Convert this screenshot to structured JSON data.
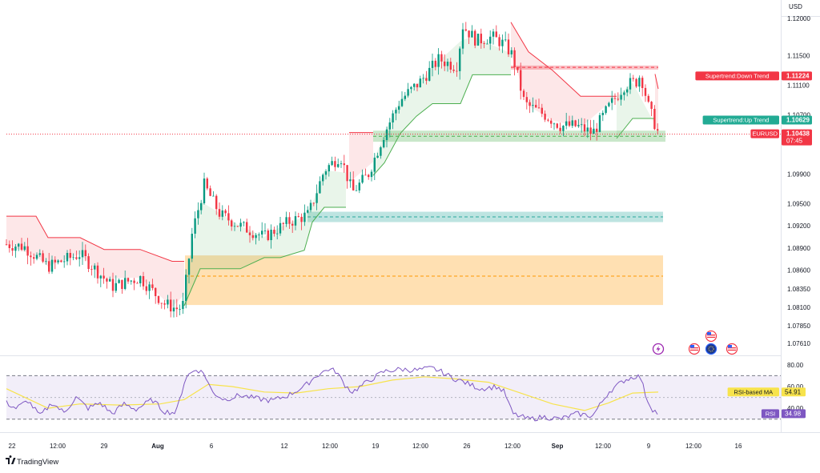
{
  "app": {
    "brand": "TradingView",
    "currency": "USD"
  },
  "chart_data": [
    {
      "type": "candlestick",
      "symbol": "EURUSD",
      "y_axis": {
        "ylim": [
          1.0745,
          1.1225
        ],
        "ticks": [
          "1.12000",
          "1.11500",
          "1.11100",
          "1.10700",
          "1.09900",
          "1.09500",
          "1.09200",
          "1.08900",
          "1.08600",
          "1.08350",
          "1.08100",
          "1.07850",
          "1.07610"
        ],
        "tick_values": [
          1.12,
          1.115,
          1.111,
          1.107,
          1.099,
          1.095,
          1.092,
          1.089,
          1.086,
          1.0835,
          1.081,
          1.0785,
          1.0761
        ]
      },
      "x_axis": {
        "ticks": [
          "22",
          "12:00",
          "29",
          "Aug",
          "6",
          "12",
          "12:00",
          "19",
          "12:00",
          "26",
          "12:00",
          "Sep",
          "12:00",
          "9",
          "12:00",
          "16"
        ],
        "bold_ticks": [
          "Aug",
          "Sep"
        ]
      },
      "waypoints": [
        [
          8,
          1.0895
        ],
        [
          30,
          1.0892
        ],
        [
          60,
          1.0865
        ],
        [
          100,
          1.0882
        ],
        [
          140,
          1.0838
        ],
        [
          175,
          1.085
        ],
        [
          205,
          1.0815
        ],
        [
          220,
          1.0808
        ],
        [
          228,
          1.081
        ],
        [
          240,
          1.091
        ],
        [
          255,
          1.0975
        ],
        [
          275,
          1.0935
        ],
        [
          300,
          1.092
        ],
        [
          330,
          1.0905
        ],
        [
          360,
          1.0925
        ],
        [
          385,
          1.0935
        ],
        [
          405,
          1.0995
        ],
        [
          425,
          1.1015
        ],
        [
          440,
          1.0965
        ],
        [
          460,
          1.099
        ],
        [
          480,
          1.1045
        ],
        [
          500,
          1.109
        ],
        [
          525,
          1.1115
        ],
        [
          548,
          1.1145
        ],
        [
          570,
          1.1135
        ],
        [
          578,
          1.119
        ],
        [
          595,
          1.117
        ],
        [
          615,
          1.1175
        ],
        [
          630,
          1.1165
        ],
        [
          640,
          1.115
        ],
        [
          655,
          1.1085
        ],
        [
          680,
          1.107
        ],
        [
          700,
          1.1055
        ],
        [
          720,
          1.1055
        ],
        [
          740,
          1.1045
        ],
        [
          760,
          1.108
        ],
        [
          780,
          1.111
        ],
        [
          795,
          1.1115
        ],
        [
          800,
          1.1125
        ],
        [
          810,
          1.108
        ],
        [
          822,
          1.1045
        ]
      ],
      "supertrend": {
        "down_segments": [
          [
            [
              8,
              1.0933
            ],
            [
              45,
              1.0933
            ],
            [
              60,
              1.0904
            ],
            [
              100,
              1.0904
            ],
            [
              130,
              1.0888
            ],
            [
              175,
              1.0888
            ],
            [
              215,
              1.0872
            ],
            [
              230,
              1.0872
            ]
          ],
          [
            [
              436,
              1.1046
            ],
            [
              466,
              1.1046
            ]
          ],
          [
            [
              638,
              1.1195
            ],
            [
              660,
              1.1155
            ],
            [
              690,
              1.113
            ],
            [
              725,
              1.1095
            ],
            [
              770,
              1.1095
            ]
          ],
          [
            [
              818,
              1.1125
            ],
            [
              822,
              1.1105
            ]
          ]
        ],
        "up_segments": [
          [
            [
              230,
              1.0812
            ],
            [
              250,
              1.0862
            ],
            [
              300,
              1.0862
            ],
            [
              330,
              1.0877
            ],
            [
              350,
              1.0877
            ],
            [
              380,
              1.0887
            ],
            [
              390,
              1.0925
            ],
            [
              405,
              1.0945
            ],
            [
              432,
              1.0945
            ]
          ],
          [
            [
              466,
              1.0988
            ],
            [
              480,
              1.1005
            ],
            [
              500,
              1.1045
            ],
            [
              520,
              1.1068
            ],
            [
              540,
              1.1085
            ],
            [
              575,
              1.1085
            ],
            [
              590,
              1.1124
            ],
            [
              638,
              1.1124
            ]
          ],
          [
            [
              770,
              1.1038
            ],
            [
              790,
              1.1065
            ],
            [
              818,
              1.1065
            ]
          ]
        ]
      },
      "zones": [
        {
          "top": 1.10485,
          "bottom": 1.10335,
          "mid": 1.1041,
          "color": "#4caf50"
        },
        {
          "top": 1.11365,
          "bottom": 1.1131,
          "mid": 1.1134,
          "color": "#f23645"
        },
        {
          "top": 1.0939,
          "bottom": 1.0925,
          "mid": 1.0932,
          "color": "#26a69a"
        },
        {
          "top": 1.088,
          "bottom": 1.0813,
          "mid": 1.0852,
          "color": "#ff9800"
        }
      ],
      "price_labels": [
        {
          "text": "Supertrend:Down Trend",
          "value": "1.11224",
          "price": 1.11224,
          "color": "#f23645"
        },
        {
          "text": "Supertrend:Up Trend",
          "value": "1.10629",
          "price": 1.10629,
          "color": "#22ab94"
        },
        {
          "text": "EURUSD",
          "value": "1.10438",
          "sub": "07:45",
          "price": 1.10438,
          "color": "#f23645"
        }
      ],
      "colors": {
        "up": "#089981",
        "down": "#f23645"
      }
    },
    {
      "type": "line",
      "name": "RSI",
      "ylim": [
        18,
        88
      ],
      "ticks": [
        "80.00",
        "60.00",
        "40.00"
      ],
      "tick_values": [
        80,
        60,
        40
      ],
      "band": [
        30,
        70
      ],
      "rsi_label": {
        "text": "RSI",
        "value": "34.98"
      },
      "ma_label": {
        "text": "RSI-based MA",
        "value": "54.91"
      },
      "rsi_waypoints": [
        [
          8,
          45
        ],
        [
          20,
          40
        ],
        [
          35,
          47
        ],
        [
          50,
          33
        ],
        [
          65,
          45
        ],
        [
          80,
          36
        ],
        [
          95,
          50
        ],
        [
          110,
          40
        ],
        [
          125,
          45
        ],
        [
          140,
          35
        ],
        [
          155,
          44
        ],
        [
          170,
          39
        ],
        [
          190,
          48
        ],
        [
          205,
          37
        ],
        [
          220,
          36
        ],
        [
          232,
          69
        ],
        [
          245,
          76
        ],
        [
          255,
          72
        ],
        [
          265,
          55
        ],
        [
          280,
          48
        ],
        [
          300,
          52
        ],
        [
          320,
          49
        ],
        [
          340,
          47
        ],
        [
          360,
          52
        ],
        [
          380,
          60
        ],
        [
          395,
          70
        ],
        [
          410,
          76
        ],
        [
          420,
          74
        ],
        [
          430,
          62
        ],
        [
          440,
          55
        ],
        [
          460,
          65
        ],
        [
          480,
          74
        ],
        [
          500,
          76
        ],
        [
          520,
          75
        ],
        [
          540,
          77
        ],
        [
          550,
          74
        ],
        [
          565,
          68
        ],
        [
          580,
          64
        ],
        [
          600,
          58
        ],
        [
          620,
          60
        ],
        [
          630,
          55
        ],
        [
          640,
          35
        ],
        [
          660,
          30
        ],
        [
          680,
          32
        ],
        [
          700,
          30
        ],
        [
          720,
          35
        ],
        [
          740,
          33
        ],
        [
          760,
          55
        ],
        [
          780,
          66
        ],
        [
          795,
          70
        ],
        [
          800,
          68
        ],
        [
          808,
          48
        ],
        [
          815,
          39
        ],
        [
          822,
          34.98
        ]
      ],
      "ma_waypoints": [
        [
          8,
          58
        ],
        [
          60,
          40
        ],
        [
          100,
          44
        ],
        [
          150,
          43
        ],
        [
          200,
          44
        ],
        [
          230,
          48
        ],
        [
          260,
          62
        ],
        [
          290,
          60
        ],
        [
          330,
          55
        ],
        [
          370,
          54
        ],
        [
          410,
          58
        ],
        [
          450,
          60
        ],
        [
          490,
          66
        ],
        [
          530,
          69
        ],
        [
          570,
          67
        ],
        [
          610,
          64
        ],
        [
          650,
          54
        ],
        [
          690,
          44
        ],
        [
          730,
          38
        ],
        [
          760,
          45
        ],
        [
          790,
          54
        ],
        [
          822,
          54.91
        ]
      ]
    }
  ]
}
